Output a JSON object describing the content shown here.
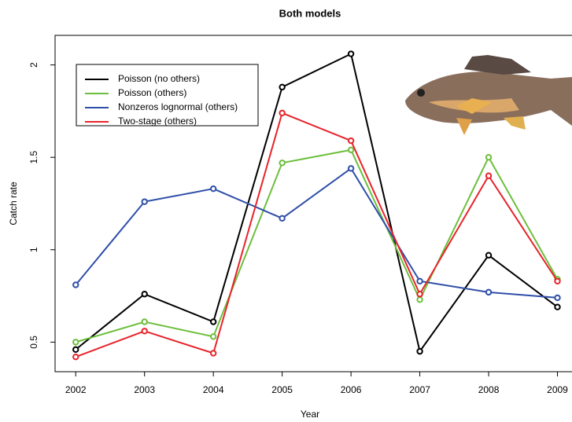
{
  "chart_data": {
    "type": "line",
    "title": "Both models",
    "x_label": "Year",
    "y_label": "Catch rate",
    "x": [
      2002,
      2003,
      2004,
      2005,
      2006,
      2007,
      2008,
      2009
    ],
    "xlim": [
      2001.7,
      2009.2
    ],
    "xticks": [
      2002,
      2003,
      2004,
      2005,
      2006,
      2007,
      2008,
      2009
    ],
    "ylim": [
      0.34,
      2.16
    ],
    "yticks": [
      0.5,
      1.0,
      1.5,
      2.0
    ],
    "legend": "top-left",
    "series": [
      {
        "name": "Poisson (no others)",
        "color": "#000000",
        "values": [
          0.46,
          0.76,
          0.61,
          1.88,
          2.06,
          0.45,
          0.97,
          0.69
        ]
      },
      {
        "name": "Poisson (others)",
        "color": "#6cbf3c",
        "values": [
          0.5,
          0.61,
          0.53,
          1.47,
          1.54,
          0.73,
          1.5,
          0.84
        ]
      },
      {
        "name": "Nonzeros lognormal (others)",
        "color": "#2f4fa8",
        "values": [
          0.81,
          1.26,
          1.33,
          1.17,
          1.44,
          0.83,
          0.77,
          0.74
        ]
      },
      {
        "name": "Two-stage (others)",
        "color": "#e8232a",
        "values": [
          0.42,
          0.56,
          0.44,
          1.74,
          1.59,
          0.76,
          1.4,
          0.83
        ]
      }
    ]
  }
}
